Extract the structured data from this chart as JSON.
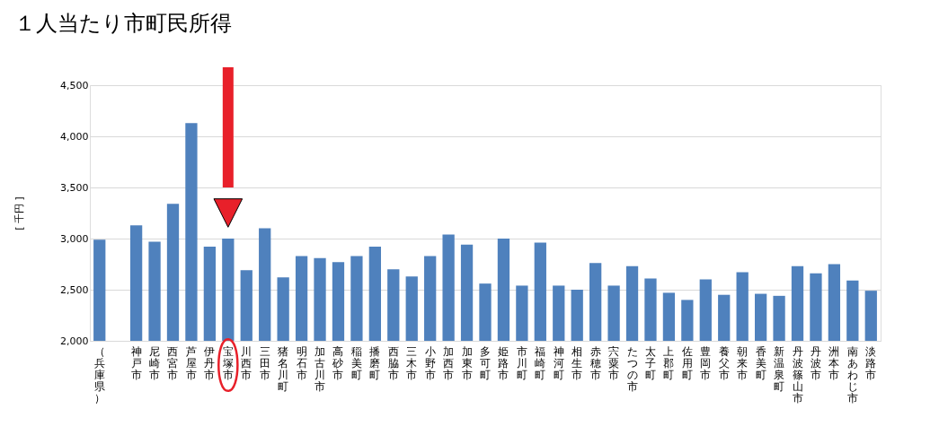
{
  "chart_data": {
    "type": "bar",
    "title": "１人当たり市町民所得",
    "ylabel": "[ 千円 ]",
    "categories": [
      "（兵庫県）",
      null,
      "神戸市",
      "尼崎市",
      "西宮市",
      "芦屋市",
      "伊丹市",
      "宝塚市",
      "川西市",
      "三田市",
      "猪名川町",
      "明石市",
      "加古川市",
      "高砂市",
      "稲美町",
      "播磨町",
      "西脇市",
      "三木市",
      "小野市",
      "加西市",
      "加東市",
      "多可町",
      "姫路市",
      "市川町",
      "福崎町",
      "神河町",
      "相生市",
      "赤穂市",
      "宍粟市",
      "たつの市",
      "太子町",
      "上郡町",
      "佐用町",
      "豊岡市",
      "養父市",
      "朝来市",
      "香美町",
      "新温泉町",
      "丹波篠山市",
      "丹波市",
      "洲本市",
      "南あわじ市",
      "淡路市"
    ],
    "values": [
      2990,
      null,
      3130,
      2970,
      3340,
      4130,
      2920,
      3000,
      2690,
      3100,
      2620,
      2830,
      2810,
      2770,
      2830,
      2920,
      2700,
      2630,
      2830,
      3040,
      2940,
      2560,
      3000,
      2540,
      2960,
      2540,
      2500,
      2760,
      2540,
      2730,
      2610,
      2470,
      2400,
      2600,
      2450,
      2670,
      2460,
      2440,
      2730,
      2660,
      2750,
      2590,
      2490
    ],
    "color": "#4f81bd",
    "ylim": [
      2000,
      4500
    ],
    "yticks": [
      {
        "value": 2000,
        "label": "2,000"
      },
      {
        "value": 2500,
        "label": "2,500"
      },
      {
        "value": 3000,
        "label": "3,000"
      },
      {
        "value": 3500,
        "label": "3,500"
      },
      {
        "value": 4000,
        "label": "4,000"
      },
      {
        "value": 4500,
        "label": "4,500"
      }
    ],
    "grid": "y"
  }
}
